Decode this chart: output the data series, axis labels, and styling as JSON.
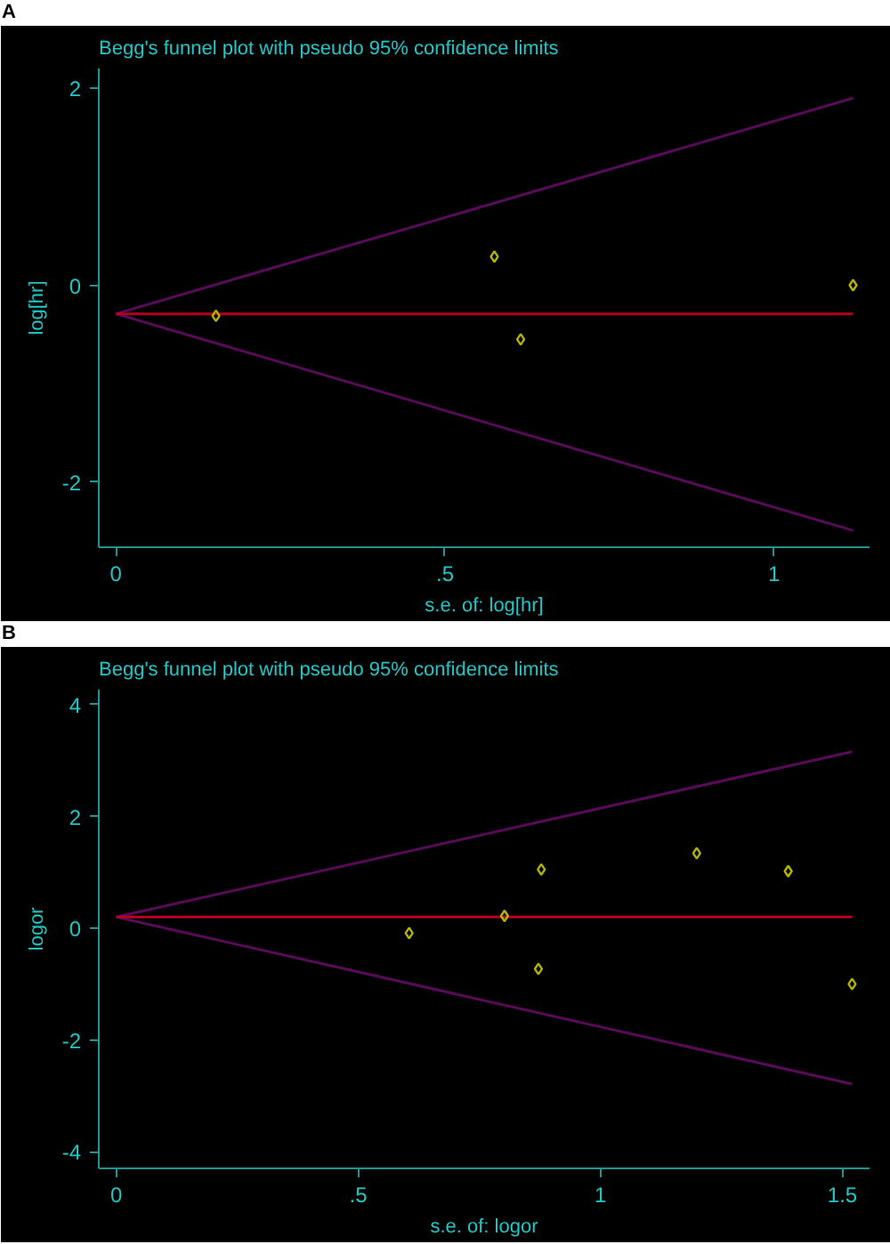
{
  "chart_data": [
    {
      "type": "scatter",
      "title": "Begg's funnel plot with pseudo 95% confidence limits",
      "xlabel": "s.e. of: log[hr]",
      "ylabel": "log[hr]",
      "annotations": [
        "A"
      ],
      "xlim": [
        -0.026,
        1.145
      ],
      "ylim": [
        -2.66,
        2.2
      ],
      "xticks": [
        0,
        {
          "value": 0.5,
          "label": ".5"
        },
        1
      ],
      "yticks": [
        -2,
        0,
        2
      ],
      "grid": false,
      "marker": "diamond",
      "line_style": "solid",
      "series": [
        {
          "type": "line",
          "marker": "none",
          "color": "#5a0a5a",
          "x": [
            0,
            1.12
          ],
          "values": [
            -0.29,
            1.9
          ]
        },
        {
          "type": "line",
          "marker": "none",
          "color": "#5a0a5a",
          "x": [
            0,
            1.12
          ],
          "values": [
            -0.29,
            -2.49
          ]
        },
        {
          "type": "line",
          "marker": "none",
          "color": "#b4001e",
          "x": [
            0,
            1.12
          ],
          "values": [
            -0.29,
            -0.29
          ]
        },
        {
          "color": "#b4b400",
          "x": [
            0.152,
            0.575,
            0.615,
            1.12
          ],
          "values": [
            -0.31,
            0.29,
            -0.55,
            0.0
          ]
        }
      ]
    },
    {
      "type": "scatter",
      "title": "Begg's funnel plot with pseudo 95% confidence limits",
      "xlabel": "s.e. of: logor",
      "ylabel": "logor",
      "annotations": [
        "B"
      ],
      "xlim": [
        -0.036,
        1.556
      ],
      "ylim": [
        -4.3,
        4.27
      ],
      "xticks": [
        0,
        {
          "value": 0.5,
          "label": ".5"
        },
        1,
        1.5
      ],
      "yticks": [
        -4,
        -2,
        0,
        2,
        4
      ],
      "grid": false,
      "marker": "diamond",
      "line_style": "solid",
      "series": [
        {
          "type": "line",
          "marker": "none",
          "color": "#5a0a5a",
          "x": [
            0,
            1.52
          ],
          "values": [
            0.2,
            3.16
          ]
        },
        {
          "type": "line",
          "marker": "none",
          "color": "#5a0a5a",
          "x": [
            0,
            1.52
          ],
          "values": [
            0.2,
            -2.79
          ]
        },
        {
          "type": "line",
          "marker": "none",
          "color": "#b4001e",
          "x": [
            0,
            1.52
          ],
          "values": [
            0.2,
            0.2
          ]
        },
        {
          "color": "#b4b400",
          "x": [
            0.605,
            0.802,
            0.878,
            0.872,
            1.199,
            1.388,
            1.52
          ],
          "values": [
            -0.09,
            0.22,
            1.05,
            -0.73,
            1.34,
            1.02,
            -1.0
          ]
        }
      ]
    }
  ]
}
